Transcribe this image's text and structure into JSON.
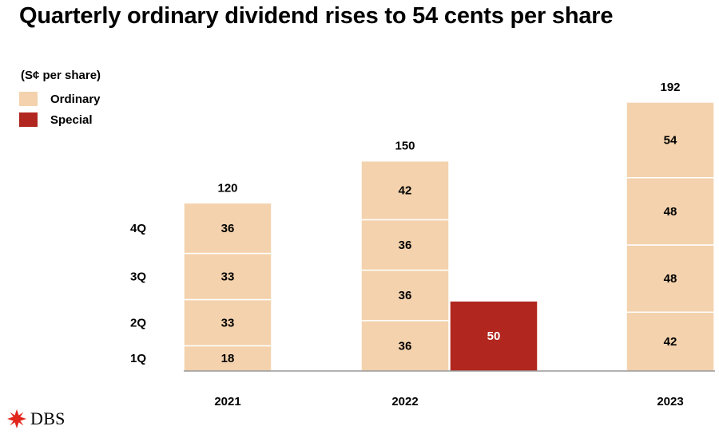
{
  "title": "Quarterly ordinary dividend rises to 54 cents per share",
  "chart_data": {
    "type": "bar",
    "stacked": true,
    "unit_label": "(S¢ per share)",
    "legend": [
      {
        "name": "Ordinary",
        "color": "#f3d2ad"
      },
      {
        "name": "Special",
        "color": "#b1261e"
      }
    ],
    "quarter_labels": [
      "1Q",
      "2Q",
      "3Q",
      "4Q"
    ],
    "bars": [
      {
        "category": "2021",
        "type": "Ordinary",
        "segments": [
          18,
          33,
          33,
          36
        ],
        "total": "120"
      },
      {
        "category": "2022",
        "type": "Ordinary",
        "segments": [
          36,
          36,
          36,
          42
        ],
        "total": "150"
      },
      {
        "category": "",
        "type": "Special",
        "segments": [
          50
        ],
        "total": ""
      },
      {
        "category": "2023",
        "type": "Ordinary",
        "segments": [
          42,
          48,
          48,
          54
        ],
        "total": "192"
      }
    ],
    "x_labels": [
      "2021",
      "2022",
      "2023"
    ],
    "ylim": [
      0,
      192
    ]
  },
  "logo": {
    "text": "DBS",
    "icon": "dbs-star-icon",
    "color": "#e1261c"
  }
}
